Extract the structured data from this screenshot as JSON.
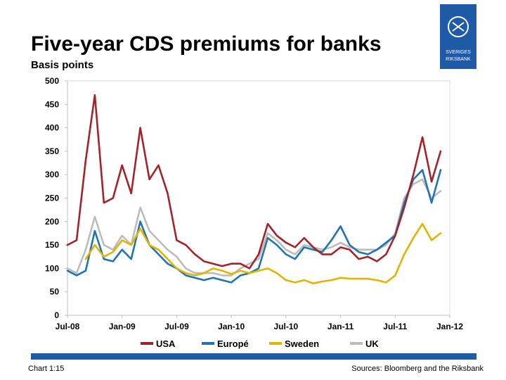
{
  "title": "Five-year CDS premiums for banks",
  "subtitle": "Basis points",
  "chart_number": "Chart 1:15",
  "sources": "Sources: Bloomberg and the Riksbank",
  "logo_text": "SVERIGES RIKSBANK",
  "colors": {
    "USA": "#a3232b",
    "Europe": "#1f74b4",
    "Sweden": "#e2b300",
    "UK": "#bcbcbc",
    "accent": "#1f5aa6"
  },
  "chart_data": {
    "type": "line",
    "ylim": [
      0,
      500
    ],
    "yticks": [
      "0",
      "50",
      "100",
      "150",
      "200",
      "250",
      "300",
      "350",
      "400",
      "450",
      "500"
    ],
    "xticks": [
      "Jul-08",
      "Jan-09",
      "Jul-09",
      "Jan-10",
      "Jul-10",
      "Jan-11",
      "Jul-11",
      "Jan-12"
    ],
    "xlim": [
      "2008-07",
      "2012-01"
    ],
    "grid": false,
    "legend_position": "bottom",
    "series": [
      {
        "name": "USA",
        "x": [
          "2008-07",
          "2008-08",
          "2008-09",
          "2008-10",
          "2008-11",
          "2008-12",
          "2009-01",
          "2009-02",
          "2009-03",
          "2009-04",
          "2009-05",
          "2009-06",
          "2009-07",
          "2009-08",
          "2009-09",
          "2009-10",
          "2009-11",
          "2009-12",
          "2010-01",
          "2010-02",
          "2010-03",
          "2010-04",
          "2010-05",
          "2010-06",
          "2010-07",
          "2010-08",
          "2010-09",
          "2010-10",
          "2010-11",
          "2010-12",
          "2011-01",
          "2011-02",
          "2011-03",
          "2011-04",
          "2011-05",
          "2011-06",
          "2011-07",
          "2011-08",
          "2011-09",
          "2011-10",
          "2011-11",
          "2011-12"
        ],
        "values": [
          150,
          160,
          330,
          470,
          240,
          250,
          320,
          260,
          400,
          290,
          320,
          260,
          160,
          150,
          130,
          115,
          110,
          105,
          110,
          110,
          100,
          130,
          195,
          170,
          155,
          145,
          165,
          145,
          130,
          130,
          145,
          140,
          120,
          125,
          115,
          130,
          170,
          230,
          300,
          380,
          285,
          350
        ]
      },
      {
        "name": "Europé",
        "x": [
          "2008-07",
          "2008-08",
          "2008-09",
          "2008-10",
          "2008-11",
          "2008-12",
          "2009-01",
          "2009-02",
          "2009-03",
          "2009-04",
          "2009-05",
          "2009-06",
          "2009-07",
          "2009-08",
          "2009-09",
          "2009-10",
          "2009-11",
          "2009-12",
          "2010-01",
          "2010-02",
          "2010-03",
          "2010-04",
          "2010-05",
          "2010-06",
          "2010-07",
          "2010-08",
          "2010-09",
          "2010-10",
          "2010-11",
          "2010-12",
          "2011-01",
          "2011-02",
          "2011-03",
          "2011-04",
          "2011-05",
          "2011-06",
          "2011-07",
          "2011-08",
          "2011-09",
          "2011-10",
          "2011-11",
          "2011-12"
        ],
        "values": [
          95,
          85,
          95,
          180,
          120,
          115,
          140,
          120,
          200,
          150,
          130,
          110,
          100,
          85,
          80,
          75,
          80,
          75,
          70,
          85,
          90,
          100,
          165,
          150,
          130,
          120,
          145,
          140,
          135,
          160,
          190,
          150,
          135,
          130,
          140,
          155,
          170,
          240,
          290,
          310,
          240,
          310
        ]
      },
      {
        "name": "Sweden",
        "x": [
          "2008-09",
          "2008-10",
          "2008-11",
          "2008-12",
          "2009-01",
          "2009-02",
          "2009-03",
          "2009-04",
          "2009-05",
          "2009-06",
          "2009-07",
          "2009-08",
          "2009-09",
          "2009-10",
          "2009-11",
          "2009-12",
          "2010-01",
          "2010-02",
          "2010-03",
          "2010-04",
          "2010-05",
          "2010-06",
          "2010-07",
          "2010-08",
          "2010-09",
          "2010-10",
          "2010-11",
          "2010-12",
          "2011-01",
          "2011-02",
          "2011-03",
          "2011-04",
          "2011-05",
          "2011-06",
          "2011-07",
          "2011-08",
          "2011-09",
          "2011-10",
          "2011-11",
          "2011-12"
        ],
        "values": [
          120,
          150,
          125,
          135,
          160,
          150,
          185,
          150,
          140,
          120,
          100,
          90,
          85,
          90,
          100,
          95,
          88,
          95,
          90,
          95,
          100,
          90,
          75,
          70,
          75,
          68,
          72,
          75,
          80,
          78,
          78,
          78,
          75,
          70,
          85,
          130,
          165,
          195,
          160,
          175
        ]
      },
      {
        "name": "UK",
        "x": [
          "2008-07",
          "2008-08",
          "2008-09",
          "2008-10",
          "2008-11",
          "2008-12",
          "2009-01",
          "2009-02",
          "2009-03",
          "2009-04",
          "2009-05",
          "2009-06",
          "2009-07",
          "2009-08",
          "2009-09",
          "2009-10",
          "2009-11",
          "2009-12",
          "2010-01",
          "2010-02",
          "2010-03",
          "2010-04",
          "2010-05",
          "2010-06",
          "2010-07",
          "2010-08",
          "2010-09",
          "2010-10",
          "2010-11",
          "2010-12",
          "2011-01",
          "2011-02",
          "2011-03",
          "2011-04",
          "2011-05",
          "2011-06",
          "2011-07",
          "2011-08",
          "2011-09",
          "2011-10",
          "2011-11",
          "2011-12"
        ],
        "values": [
          100,
          90,
          140,
          210,
          150,
          140,
          170,
          150,
          230,
          180,
          160,
          140,
          125,
          100,
          90,
          90,
          90,
          85,
          85,
          100,
          110,
          120,
          175,
          160,
          140,
          130,
          150,
          145,
          140,
          145,
          155,
          145,
          140,
          140,
          140,
          150,
          175,
          250,
          280,
          290,
          250,
          265
        ]
      }
    ]
  }
}
